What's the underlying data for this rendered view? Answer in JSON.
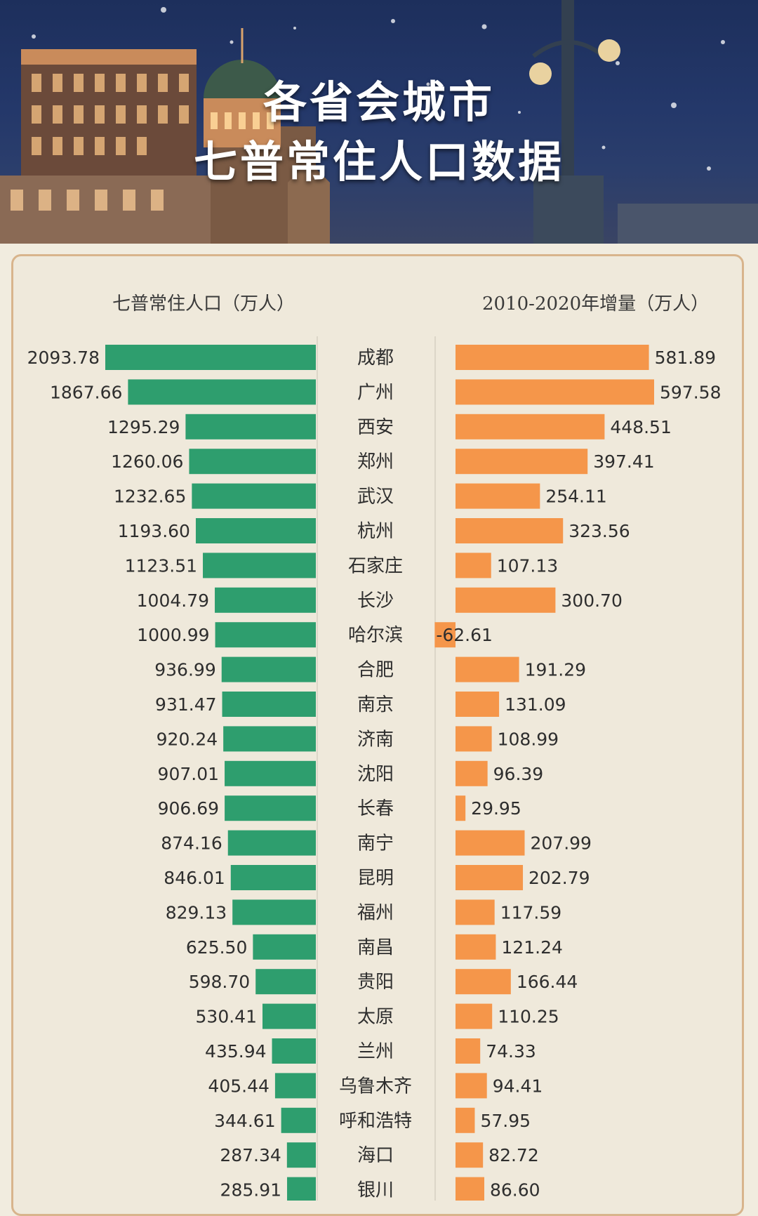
{
  "header": {
    "title_line1": "各省会城市",
    "title_line2": "七普常住人口数据"
  },
  "colors": {
    "pop_bar": "#2e9e6e",
    "growth_bar": "#f5964a",
    "panel_border": "#d8b48c"
  },
  "chart_data": {
    "type": "bar",
    "title": "各省会城市七普常住人口数据",
    "left_label": "七普常住人口（万人）",
    "right_label": "2010-2020年增量（万人）",
    "categories": [
      "成都",
      "广州",
      "西安",
      "郑州",
      "武汉",
      "杭州",
      "石家庄",
      "长沙",
      "哈尔滨",
      "合肥",
      "南京",
      "济南",
      "沈阳",
      "长春",
      "南宁",
      "昆明",
      "福州",
      "南昌",
      "贵阳",
      "太原",
      "兰州",
      "乌鲁木齐",
      "呼和浩特",
      "海口",
      "银川"
    ],
    "series": [
      {
        "name": "七普常住人口（万人）",
        "values": [
          2093.78,
          1867.66,
          1295.29,
          1260.06,
          1232.65,
          1193.6,
          1123.51,
          1004.79,
          1000.99,
          936.99,
          931.47,
          920.24,
          907.01,
          906.69,
          874.16,
          846.01,
          829.13,
          625.5,
          598.7,
          530.41,
          435.94,
          405.44,
          344.61,
          287.34,
          285.91
        ],
        "labels": [
          "2093.78",
          "1867.66",
          "1295.29",
          "1260.06",
          "1232.65",
          "1193.60",
          "1123.51",
          "1004.79",
          "1000.99",
          "936.99",
          "931.47",
          "920.24",
          "907.01",
          "906.69",
          "874.16",
          "846.01",
          "829.13",
          "625.50",
          "598.70",
          "530.41",
          "435.94",
          "405.44",
          "344.61",
          "287.34",
          "285.91"
        ]
      },
      {
        "name": "2010-2020年增量（万人）",
        "values": [
          581.89,
          597.58,
          448.51,
          397.41,
          254.11,
          323.56,
          107.13,
          300.7,
          -62.61,
          191.29,
          131.09,
          108.99,
          96.39,
          29.95,
          207.99,
          202.79,
          117.59,
          121.24,
          166.44,
          110.25,
          74.33,
          94.41,
          57.95,
          82.72,
          86.6
        ],
        "labels": [
          "581.89",
          "597.58",
          "448.51",
          "397.41",
          "254.11",
          "323.56",
          "107.13",
          "300.70",
          "-62.61",
          "191.29",
          "131.09",
          "108.99",
          "96.39",
          "29.95",
          "207.99",
          "202.79",
          "117.59",
          "121.24",
          "166.44",
          "110.25",
          "74.33",
          "94.41",
          "57.95",
          "82.72",
          "86.60"
        ]
      }
    ]
  }
}
